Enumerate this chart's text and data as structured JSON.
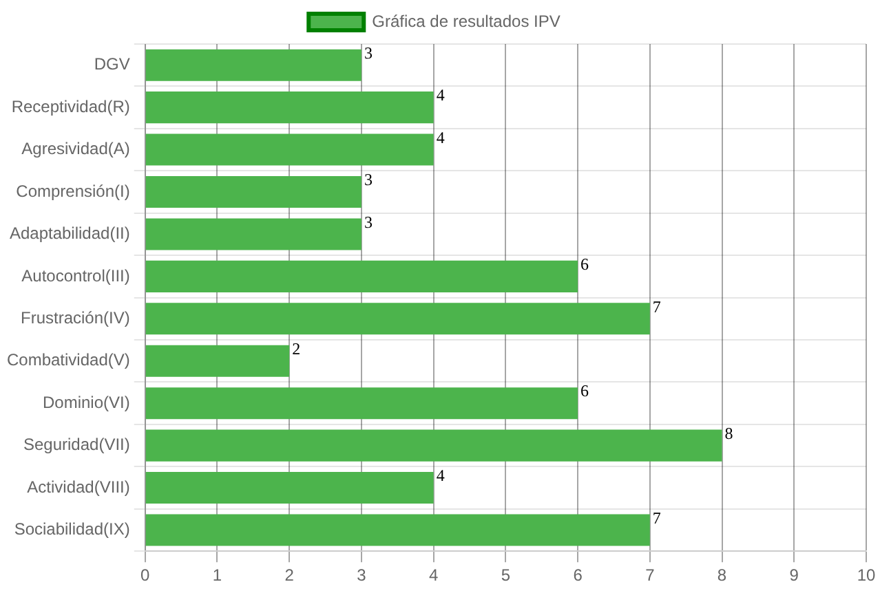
{
  "chart_data": {
    "type": "bar",
    "orientation": "horizontal",
    "categories": [
      "DGV",
      "Receptividad(R)",
      "Agresividad(A)",
      "Comprensión(I)",
      "Adaptabilidad(II)",
      "Autocontrol(III)",
      "Frustración(IV)",
      "Combatividad(V)",
      "Dominio(VI)",
      "Seguridad(VII)",
      "Actividad(VIII)",
      "Sociabilidad(IX)"
    ],
    "series": [
      {
        "name": "Gráfica de resultados IPV",
        "color": "#4cb44c",
        "values": [
          3,
          4,
          4,
          3,
          3,
          6,
          7,
          2,
          6,
          8,
          4,
          7
        ]
      }
    ],
    "xlim": [
      0,
      10
    ],
    "xticks": [
      0,
      1,
      2,
      3,
      4,
      5,
      6,
      7,
      8,
      9,
      10
    ],
    "grid": true,
    "legend": "top",
    "data_labels": true
  }
}
